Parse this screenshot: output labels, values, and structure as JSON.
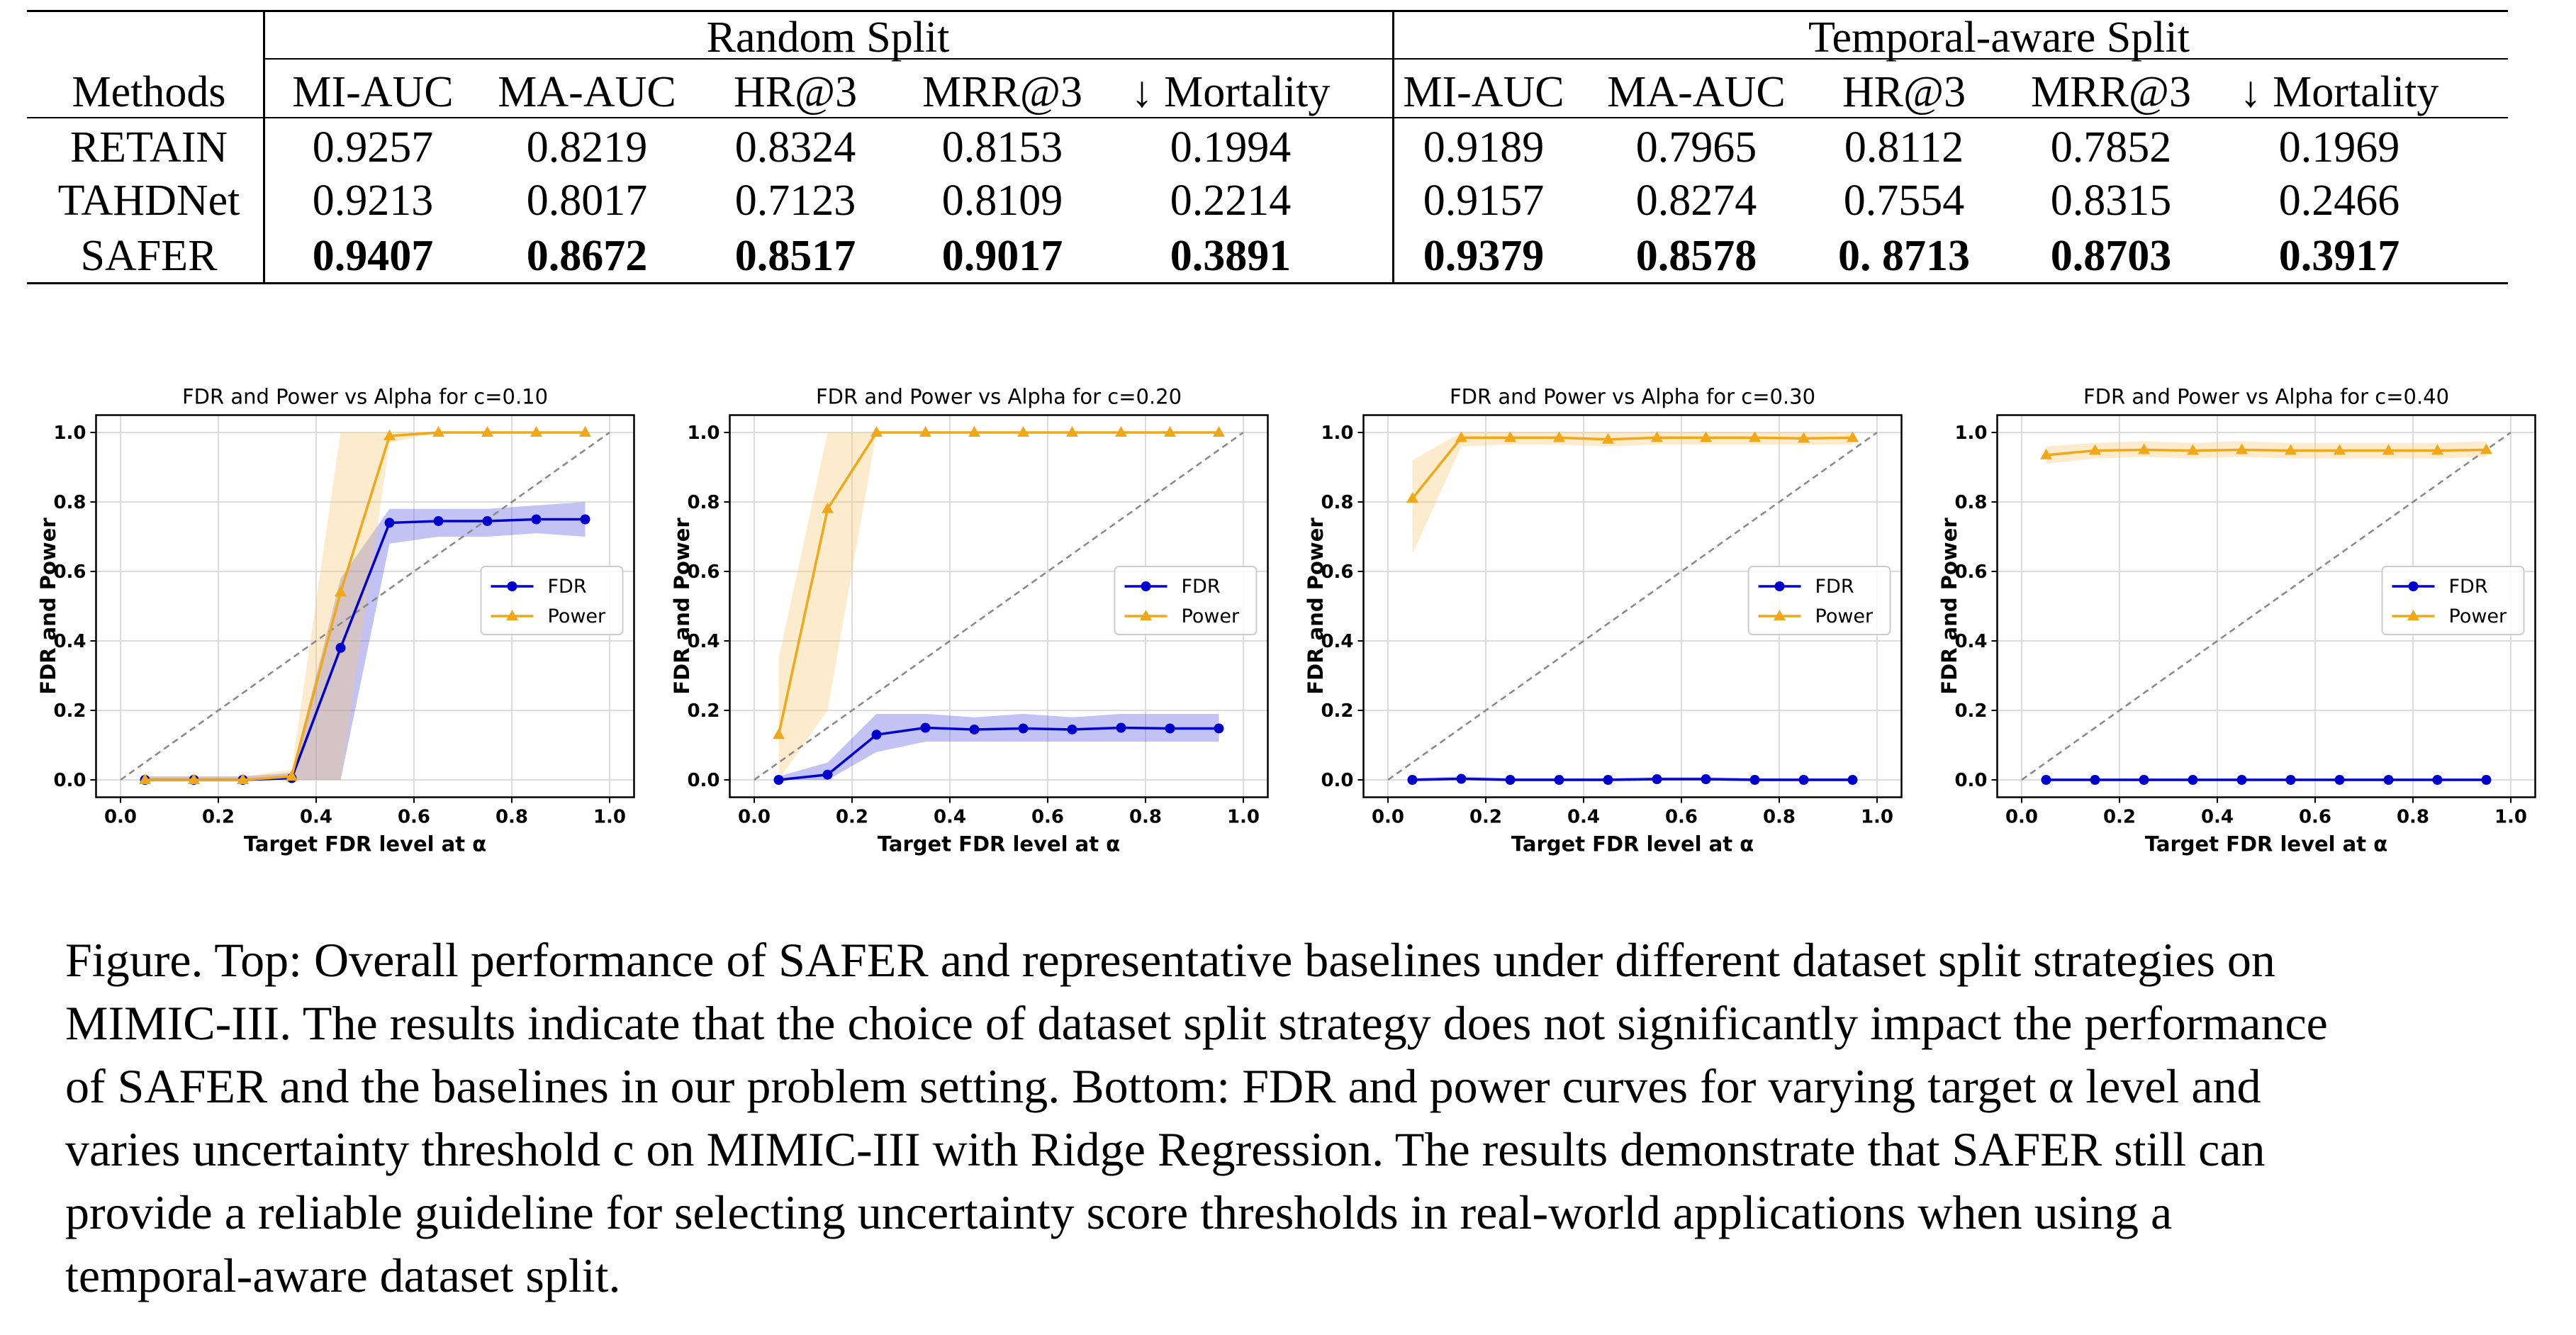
{
  "table": {
    "group_headers": [
      "Random Split",
      "Temporal-aware Split"
    ],
    "method_header": "Methods",
    "metric_headers": [
      "MI-AUC",
      "MA-AUC",
      "HR@3",
      "MRR@3",
      "↓ Mortality"
    ],
    "rows": [
      {
        "method": "RETAIN",
        "random": [
          "0.9257",
          "0.8219",
          "0.8324",
          "0.8153",
          "0.1994"
        ],
        "temporal": [
          "0.9189",
          "0.7965",
          "0.8112",
          "0.7852",
          "0.1969"
        ],
        "bold": false
      },
      {
        "method": "TAHDNet",
        "random": [
          "0.9213",
          "0.8017",
          "0.7123",
          "0.8109",
          "0.2214"
        ],
        "temporal": [
          "0.9157",
          "0.8274",
          "0.7554",
          "0.8315",
          "0.2466"
        ],
        "bold": false
      },
      {
        "method": "SAFER",
        "random": [
          "0.9407",
          "0.8672",
          "0.8517",
          "0.9017",
          "0.3891"
        ],
        "temporal": [
          "0.9379",
          "0.8578",
          "0. 8713",
          "0.8703",
          "0.3917"
        ],
        "bold": true
      }
    ]
  },
  "chart_data": [
    {
      "type": "line",
      "title": "FDR and Power vs Alpha for c=0.10",
      "xlabel": "Target FDR level at α",
      "ylabel": "FDR and Power",
      "xlim": [
        0.0,
        1.0
      ],
      "ylim": [
        0.0,
        1.0
      ],
      "xticks": [
        "0.0",
        "0.2",
        "0.4",
        "0.6",
        "0.8",
        "1.0"
      ],
      "yticks": [
        "0.0",
        "0.2",
        "0.4",
        "0.6",
        "0.8",
        "1.0"
      ],
      "grid": true,
      "legend": "center-right",
      "diagonal": true,
      "x": [
        0.05,
        0.15,
        0.25,
        0.35,
        0.45,
        0.55,
        0.65,
        0.75,
        0.85,
        0.95
      ],
      "series": [
        {
          "name": "FDR",
          "color": "#0000cc",
          "band": "#5050dd",
          "marker": "circle",
          "values": [
            0.0,
            0.0,
            0.0,
            0.005,
            0.38,
            0.74,
            0.745,
            0.745,
            0.75,
            0.75
          ],
          "lower": [
            0.0,
            0.0,
            0.0,
            0.0,
            0.0,
            0.68,
            0.7,
            0.7,
            0.71,
            0.7
          ],
          "upper": [
            0.01,
            0.01,
            0.01,
            0.02,
            0.58,
            0.78,
            0.78,
            0.78,
            0.79,
            0.8
          ]
        },
        {
          "name": "Power",
          "color": "#f0a818",
          "band": "#f5c870",
          "marker": "triangle",
          "values": [
            0.0,
            0.0,
            0.0,
            0.01,
            0.54,
            0.99,
            1.0,
            1.0,
            1.0,
            1.0
          ],
          "lower": [
            0.0,
            0.0,
            0.0,
            0.0,
            0.0,
            0.97,
            1.0,
            1.0,
            1.0,
            1.0
          ],
          "upper": [
            0.01,
            0.01,
            0.01,
            0.03,
            1.0,
            1.0,
            1.0,
            1.0,
            1.0,
            1.0
          ]
        }
      ]
    },
    {
      "type": "line",
      "title": "FDR and Power vs Alpha for c=0.20",
      "xlabel": "Target FDR level at α",
      "ylabel": "FDR and Power",
      "xlim": [
        0.0,
        1.0
      ],
      "ylim": [
        0.0,
        1.0
      ],
      "xticks": [
        "0.0",
        "0.2",
        "0.4",
        "0.6",
        "0.8",
        "1.0"
      ],
      "yticks": [
        "0.0",
        "0.2",
        "0.4",
        "0.6",
        "0.8",
        "1.0"
      ],
      "grid": true,
      "legend": "center-right",
      "diagonal": true,
      "x": [
        0.05,
        0.15,
        0.25,
        0.35,
        0.45,
        0.55,
        0.65,
        0.75,
        0.85,
        0.95
      ],
      "series": [
        {
          "name": "FDR",
          "color": "#0000cc",
          "band": "#5050dd",
          "marker": "circle",
          "values": [
            0.0,
            0.015,
            0.13,
            0.15,
            0.145,
            0.148,
            0.145,
            0.15,
            0.148,
            0.148
          ],
          "lower": [
            0.0,
            0.0,
            0.08,
            0.11,
            0.11,
            0.11,
            0.11,
            0.11,
            0.11,
            0.11
          ],
          "upper": [
            0.01,
            0.05,
            0.19,
            0.19,
            0.18,
            0.19,
            0.18,
            0.19,
            0.19,
            0.19
          ]
        },
        {
          "name": "Power",
          "color": "#f0a818",
          "band": "#f5c870",
          "marker": "triangle",
          "values": [
            0.13,
            0.78,
            1.0,
            1.0,
            1.0,
            1.0,
            1.0,
            1.0,
            1.0,
            1.0
          ],
          "lower": [
            0.0,
            0.2,
            1.0,
            1.0,
            1.0,
            1.0,
            1.0,
            1.0,
            1.0,
            1.0
          ],
          "upper": [
            0.35,
            1.0,
            1.0,
            1.0,
            1.0,
            1.0,
            1.0,
            1.0,
            1.0,
            1.0
          ]
        }
      ]
    },
    {
      "type": "line",
      "title": "FDR and Power vs Alpha for c=0.30",
      "xlabel": "Target FDR level at α",
      "ylabel": "FDR and Power",
      "xlim": [
        0.0,
        1.0
      ],
      "ylim": [
        0.0,
        1.0
      ],
      "xticks": [
        "0.0",
        "0.2",
        "0.4",
        "0.6",
        "0.8",
        "1.0"
      ],
      "yticks": [
        "0.0",
        "0.2",
        "0.4",
        "0.6",
        "0.8",
        "1.0"
      ],
      "grid": true,
      "legend": "center-right",
      "diagonal": true,
      "x": [
        0.05,
        0.15,
        0.25,
        0.35,
        0.45,
        0.55,
        0.65,
        0.75,
        0.85,
        0.95
      ],
      "series": [
        {
          "name": "FDR",
          "color": "#0000cc",
          "band": "#5050dd",
          "marker": "circle",
          "values": [
            0.0,
            0.003,
            0.0,
            0.0,
            0.0,
            0.002,
            0.002,
            0.0,
            0.0,
            0.0
          ],
          "lower": [
            0.0,
            0.0,
            0.0,
            0.0,
            0.0,
            0.0,
            0.0,
            0.0,
            0.0,
            0.0
          ],
          "upper": [
            0.005,
            0.01,
            0.005,
            0.005,
            0.005,
            0.008,
            0.008,
            0.005,
            0.005,
            0.005
          ]
        },
        {
          "name": "Power",
          "color": "#f0a818",
          "band": "#f5c870",
          "marker": "triangle",
          "values": [
            0.81,
            0.985,
            0.985,
            0.985,
            0.98,
            0.985,
            0.985,
            0.985,
            0.983,
            0.985
          ],
          "lower": [
            0.65,
            0.96,
            0.965,
            0.965,
            0.96,
            0.965,
            0.965,
            0.965,
            0.965,
            0.965
          ],
          "upper": [
            0.92,
            1.0,
            1.0,
            1.0,
            1.0,
            1.0,
            1.0,
            1.0,
            1.0,
            1.0
          ]
        }
      ]
    },
    {
      "type": "line",
      "title": "FDR and Power vs Alpha for c=0.40",
      "xlabel": "Target FDR level at α",
      "ylabel": "FDR and Power",
      "xlim": [
        0.0,
        1.0
      ],
      "ylim": [
        0.0,
        1.0
      ],
      "xticks": [
        "0.0",
        "0.2",
        "0.4",
        "0.6",
        "0.8",
        "1.0"
      ],
      "yticks": [
        "0.0",
        "0.2",
        "0.4",
        "0.6",
        "0.8",
        "1.0"
      ],
      "grid": true,
      "legend": "center-right",
      "diagonal": true,
      "x": [
        0.05,
        0.15,
        0.25,
        0.35,
        0.45,
        0.55,
        0.65,
        0.75,
        0.85,
        0.95
      ],
      "series": [
        {
          "name": "FDR",
          "color": "#0000cc",
          "band": "#5050dd",
          "marker": "circle",
          "values": [
            0.0,
            0.0,
            0.0,
            0.0,
            0.0,
            0.0,
            0.0,
            0.0,
            0.0,
            0.0
          ],
          "lower": [
            0.0,
            0.0,
            0.0,
            0.0,
            0.0,
            0.0,
            0.0,
            0.0,
            0.0,
            0.0
          ],
          "upper": [
            0.004,
            0.004,
            0.004,
            0.004,
            0.004,
            0.004,
            0.004,
            0.004,
            0.004,
            0.004
          ]
        },
        {
          "name": "Power",
          "color": "#f0a818",
          "band": "#f5c870",
          "marker": "triangle",
          "values": [
            0.935,
            0.948,
            0.95,
            0.948,
            0.95,
            0.948,
            0.948,
            0.948,
            0.948,
            0.95
          ],
          "lower": [
            0.91,
            0.925,
            0.93,
            0.925,
            0.93,
            0.925,
            0.925,
            0.925,
            0.925,
            0.93
          ],
          "upper": [
            0.96,
            0.97,
            0.975,
            0.97,
            0.975,
            0.97,
            0.97,
            0.97,
            0.97,
            0.975
          ]
        }
      ]
    }
  ],
  "caption": {
    "lines": [
      "Figure. Top: Overall performance of SAFER and representative baselines under different dataset split strategies on",
      "MIMIC-III. The results indicate that the choice of dataset split strategy does not significantly impact the performance",
      "of SAFER and the baselines in our problem setting. Bottom: FDR and power curves for varying target α level and",
      "varies uncertainty threshold c on MIMIC-III with Ridge Regression. The results demonstrate that SAFER still can",
      "provide a reliable guideline for selecting uncertainty score thresholds in real-world applications when using a",
      "temporal-aware dataset split."
    ]
  }
}
